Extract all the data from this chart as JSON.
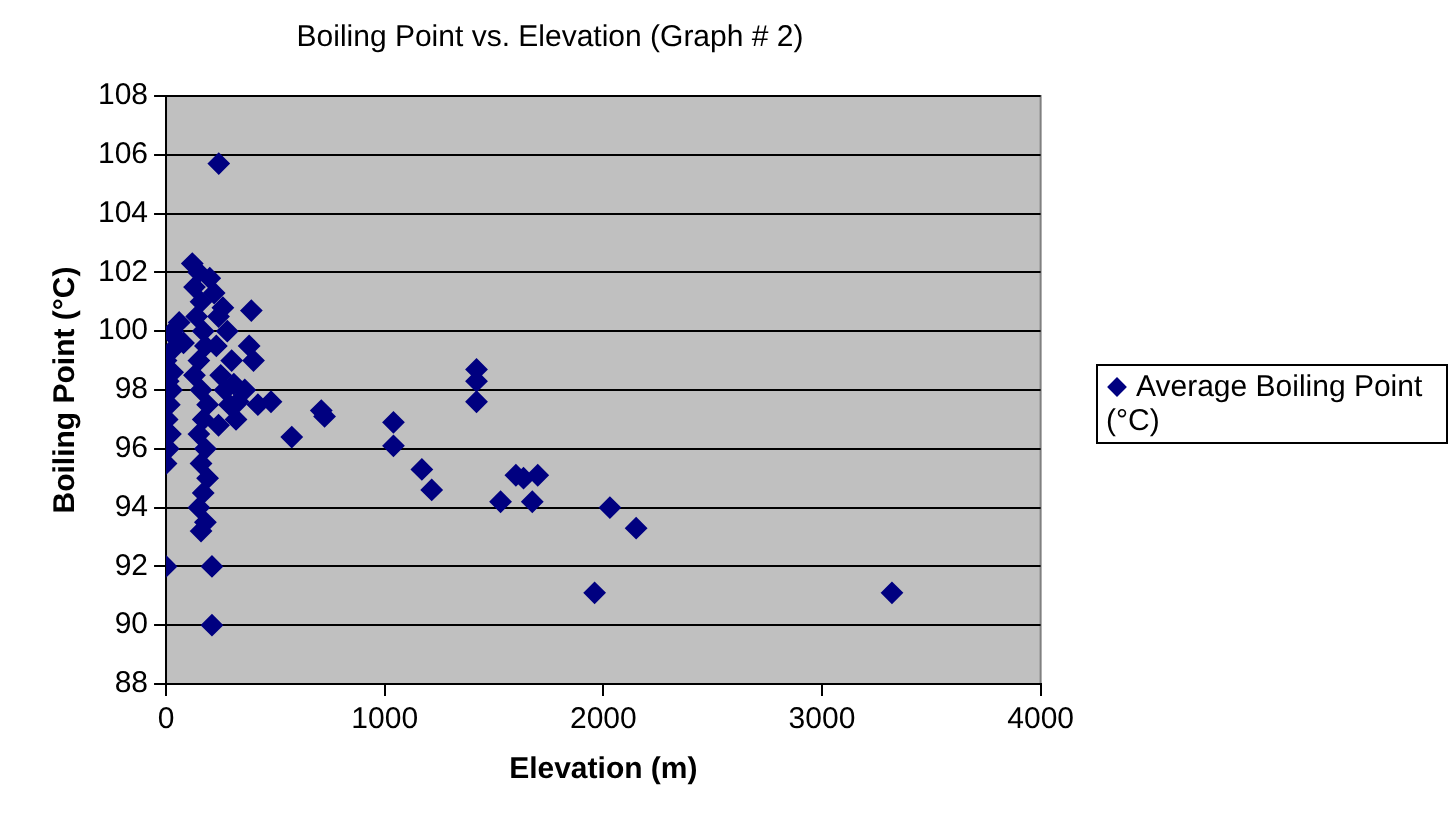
{
  "chart_data": {
    "type": "scatter",
    "title": "Boiling Point vs. Elevation (Graph # 2)",
    "xlabel": "Elevation (m)",
    "ylabel": "Boiling Point (°C)",
    "xlim": [
      0,
      4000
    ],
    "xticks": [
      0,
      1000,
      2000,
      3000,
      4000
    ],
    "ylim": [
      88,
      108
    ],
    "yticks": [
      88,
      90,
      92,
      94,
      96,
      98,
      100,
      102,
      104,
      106,
      108
    ],
    "grid": "y",
    "legend": "right",
    "marker": "diamond",
    "series": [
      {
        "name": "Average Boiling Point (°C)",
        "color": "#000080",
        "x": [
          0,
          10,
          20,
          5,
          15,
          25,
          10,
          30,
          0,
          20,
          80,
          40,
          30,
          60,
          0,
          120,
          150,
          130,
          160,
          140,
          170,
          180,
          150,
          130,
          160,
          190,
          170,
          150,
          180,
          160,
          190,
          170,
          150,
          180,
          160,
          200,
          220,
          260,
          240,
          280,
          230,
          300,
          250,
          270,
          290,
          320,
          240,
          310,
          330,
          380,
          400,
          360,
          420,
          390,
          241,
          210,
          210,
          480,
          575,
          710,
          725,
          1040,
          1040,
          1170,
          1215,
          1420,
          1420,
          1420,
          1530,
          1600,
          1635,
          1675,
          1700,
          2030,
          2150,
          1960,
          3320
        ],
        "values": [
          95.5,
          96,
          96.5,
          97,
          97.5,
          98,
          98.3,
          98.6,
          99,
          99.3,
          99.6,
          99.8,
          100,
          100.3,
          92,
          102.3,
          102,
          101.5,
          101,
          100.5,
          100,
          99.5,
          99,
          98.5,
          98,
          97.5,
          97,
          96.5,
          96,
          95.5,
          95,
          94.5,
          94,
          93.5,
          93.2,
          101.8,
          101.3,
          100.8,
          100.5,
          100,
          99.5,
          99,
          98.5,
          98,
          97.5,
          97,
          96.8,
          98.2,
          97.6,
          99.5,
          99,
          98,
          97.5,
          100.7,
          105.7,
          92,
          90,
          97.6,
          96.4,
          97.3,
          97.1,
          96.9,
          96.1,
          95.3,
          94.6,
          98.7,
          98.3,
          97.6,
          94.2,
          95.1,
          95,
          94.2,
          95.1,
          94,
          93.3,
          91.1,
          91.1
        ]
      }
    ]
  }
}
